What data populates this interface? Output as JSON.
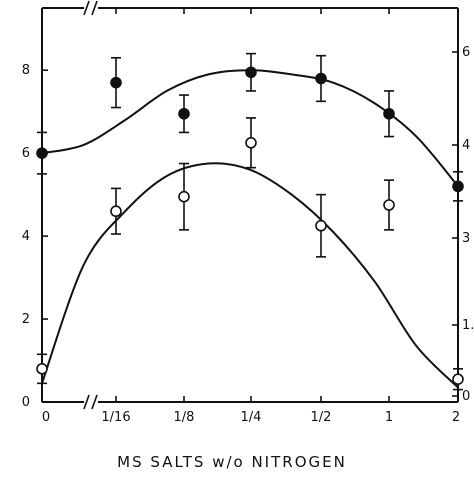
{
  "chart_data": {
    "type": "scatter",
    "xlabel": "MS  SALTS  w/o  NITROGEN",
    "categories": [
      "0",
      "1/16",
      "1/8",
      "1/4",
      "1/2",
      "1",
      "2"
    ],
    "y_left": {
      "ylim": [
        0,
        9.5
      ],
      "ticks": [
        "0",
        "2",
        "4",
        "6",
        "8"
      ]
    },
    "y_right": {
      "ticks": [
        "0",
        "1.",
        "3",
        "4",
        "6"
      ]
    },
    "series": [
      {
        "marker": "filled-circle",
        "values": [
          6.0,
          7.7,
          6.95,
          7.95,
          7.8,
          6.95,
          5.2
        ],
        "errors": [
          0.5,
          0.6,
          0.45,
          0.45,
          0.55,
          0.55,
          0.35
        ],
        "fit": [
          6.0,
          6.2,
          6.8,
          7.5,
          7.9,
          8.0,
          7.9,
          7.7,
          7.2,
          6.4,
          5.2
        ]
      },
      {
        "marker": "open-circle",
        "values": [
          0.8,
          4.6,
          4.95,
          6.25,
          4.25,
          4.75,
          0.55
        ],
        "errors": [
          0.35,
          0.55,
          0.8,
          0.6,
          0.75,
          0.6,
          0.25
        ],
        "fit": [
          0.45,
          3.3,
          4.6,
          5.45,
          5.75,
          5.6,
          5.0,
          4.1,
          2.9,
          1.35,
          0.35
        ]
      }
    ],
    "colors": {
      "axis": "#111111",
      "marker_fill": "#111111",
      "marker_open": "#ffffff"
    }
  }
}
